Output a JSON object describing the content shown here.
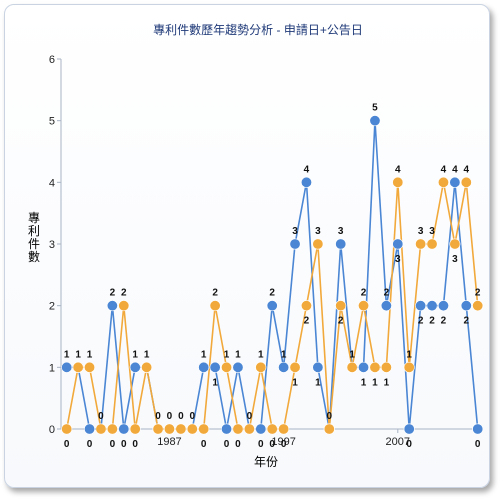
{
  "chart_data": {
    "type": "line",
    "title": "專利件數歷年趨勢分析 - 申請日+公告日",
    "xlabel": "年份",
    "ylabel": "專利件數",
    "ylim": [
      0,
      6
    ],
    "yticks": [
      0,
      1,
      2,
      3,
      4,
      5,
      6
    ],
    "x_start": 1978,
    "x_end": 2013,
    "xticks": [
      1987,
      1997,
      2007
    ],
    "grid": false,
    "legend": "none",
    "series": [
      {
        "color": "#4a86d4",
        "values": [
          1,
          1,
          0,
          0,
          2,
          0,
          1,
          1,
          0,
          0,
          0,
          0,
          1,
          1,
          0,
          1,
          0,
          0,
          2,
          1,
          3,
          4,
          1,
          0,
          3,
          1,
          1,
          5,
          2,
          3,
          0,
          2,
          2,
          2,
          4,
          2,
          0
        ]
      },
      {
        "color": "#f2a93b",
        "values": [
          0,
          1,
          1,
          0,
          0,
          2,
          0,
          1,
          0,
          0,
          0,
          0,
          0,
          2,
          1,
          0,
          0,
          1,
          0,
          0,
          1,
          2,
          3,
          0,
          2,
          1,
          2,
          1,
          1,
          4,
          1,
          3,
          3,
          4,
          3,
          4,
          2
        ]
      }
    ]
  }
}
